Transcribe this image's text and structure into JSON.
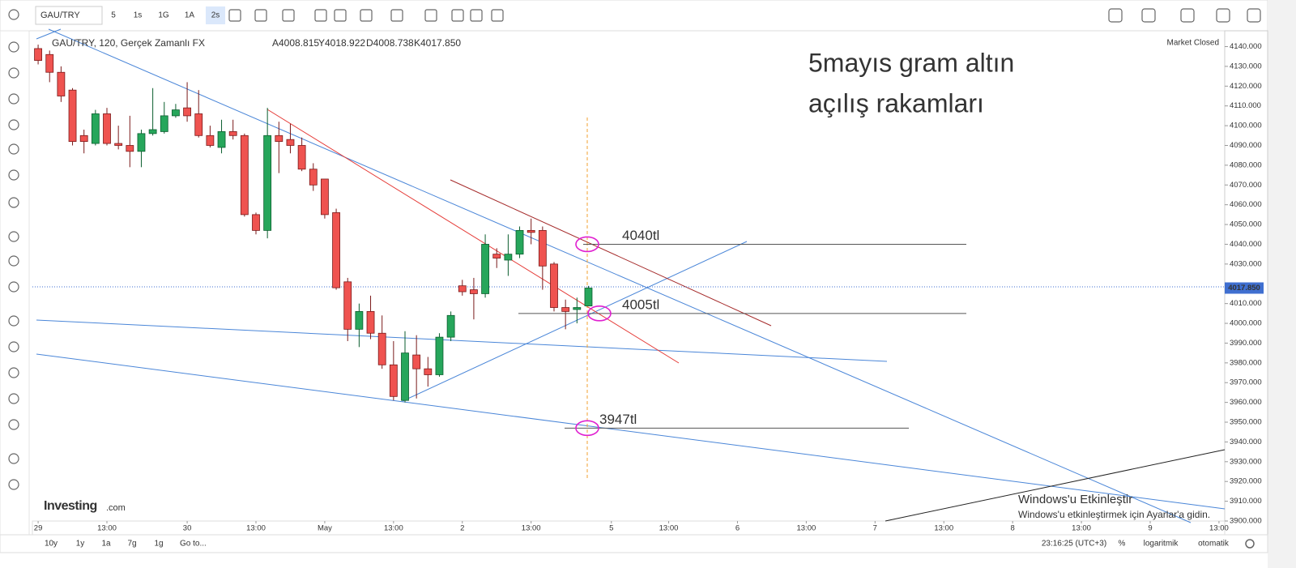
{
  "toolbar": {
    "symbol": "GAU/TRY",
    "intervals": [
      "5",
      "1s",
      "1G",
      "1A",
      "2s"
    ]
  },
  "header": {
    "title": "GAU/TRY, 120, Gerçek Zamanlı FX",
    "ohlc": [
      "A4008.815",
      "Y4018.922",
      "D4008.738",
      "K4017.850"
    ],
    "status": "Market Closed",
    "price": "4017.850"
  },
  "chart_data": {
    "type": "candlestick",
    "x": [
      0,
      1,
      2,
      3,
      4,
      5,
      6,
      7,
      8,
      9,
      10,
      11,
      12,
      13,
      14,
      15,
      16,
      17,
      18,
      19,
      20,
      21,
      22,
      23,
      24,
      25,
      26,
      27,
      28,
      29,
      30,
      31,
      32,
      33,
      34,
      35,
      36,
      37,
      38,
      39,
      40,
      41,
      42,
      43,
      44,
      45,
      46,
      47,
      48
    ],
    "open": [
      4139,
      4136,
      4127,
      4118,
      4095,
      4091,
      4106,
      4091,
      4090,
      4087,
      4096,
      4097,
      4105,
      4109,
      4106,
      4095,
      4089,
      4097,
      4095,
      4055,
      4047,
      4095,
      4093,
      4090,
      4078,
      4073,
      4056,
      4021,
      3997,
      4006,
      3995,
      3979,
      3961,
      3984,
      3977,
      3974,
      3993,
      4019,
      4017,
      4015,
      4035,
      4032,
      4035,
      4047,
      4047,
      4030,
      4008,
      4007,
      4008.815
    ],
    "high": [
      4141,
      4138,
      4130,
      4119,
      4098,
      4108,
      4109,
      4100,
      4105,
      4098,
      4119,
      4112,
      4111,
      4122,
      4118,
      4100,
      4103,
      4103,
      4096,
      4056,
      4109,
      4102,
      4101,
      4094,
      4081,
      4073,
      4058,
      4023,
      4010,
      4014,
      4004,
      3991,
      3996,
      3994,
      3983,
      3995,
      4006,
      4022,
      4023,
      4045,
      4038,
      4045,
      4049,
      4053,
      4049,
      4031,
      4012,
      4013,
      4018.922
    ],
    "low": [
      4131,
      4122,
      4112,
      4090,
      4086,
      4090,
      4090,
      4088,
      4079,
      4079,
      4095,
      4096,
      4104,
      4102,
      4094,
      4089,
      4086,
      4093,
      4054,
      4045,
      4043,
      4076,
      4086,
      4077,
      4067,
      4053,
      4017,
      3991,
      3988,
      3992,
      3977,
      3961,
      3960,
      3962,
      3968,
      3973,
      3991,
      4014,
      4002,
      4013,
      4028,
      4024,
      4033,
      4040,
      4017,
      4006,
      3997,
      4000,
      4008.738
    ],
    "close": [
      4133,
      4127,
      4115,
      4092,
      4092,
      4106,
      4091,
      4090,
      4087,
      4096,
      4098,
      4105,
      4108,
      4105,
      4095,
      4090,
      4097,
      4095,
      4055,
      4047,
      4095,
      4092,
      4090,
      4078,
      4070,
      4055,
      4018,
      3997,
      4006,
      3995,
      3979,
      3963,
      3985,
      3977,
      3974,
      3993,
      4004,
      4016,
      4015,
      4040,
      4033,
      4035,
      4047,
      4046,
      4029,
      4008,
      4006,
      4008,
      4017.85
    ],
    "up_color": "#26a65b",
    "down_color": "#ef5350",
    "grid": false,
    "ylim": [
      3900,
      4148
    ],
    "yticks": [
      {
        "value": 3900,
        "label": "3900.000"
      },
      {
        "value": 3910,
        "label": "3910.000"
      },
      {
        "value": 3920,
        "label": "3920.000"
      },
      {
        "value": 3930,
        "label": "3930.000"
      },
      {
        "value": 3940,
        "label": "3940.000"
      },
      {
        "value": 3950,
        "label": "3950.000"
      },
      {
        "value": 3960,
        "label": "3960.000"
      },
      {
        "value": 3970,
        "label": "3970.000"
      },
      {
        "value": 3980,
        "label": "3980.000"
      },
      {
        "value": 3990,
        "label": "3990.000"
      },
      {
        "value": 4000,
        "label": "4000.000"
      },
      {
        "value": 4010,
        "label": "4010.000"
      },
      {
        "value": 4030,
        "label": "4030.000"
      },
      {
        "value": 4040,
        "label": "4040.000"
      },
      {
        "value": 4050,
        "label": "4050.000"
      },
      {
        "value": 4060,
        "label": "4060.000"
      },
      {
        "value": 4070,
        "label": "4070.000"
      },
      {
        "value": 4080,
        "label": "4080.000"
      },
      {
        "value": 4090,
        "label": "4090.000"
      },
      {
        "value": 4100,
        "label": "4100.000"
      },
      {
        "value": 4110,
        "label": "4110.000"
      },
      {
        "value": 4120,
        "label": "4120.000"
      },
      {
        "value": 4130,
        "label": "4130.000"
      },
      {
        "value": 4140,
        "label": "4140.000"
      }
    ],
    "xlim": [
      -0.5,
      103.5
    ],
    "xticks": [
      {
        "value": 0,
        "label": "29"
      },
      {
        "value": 6,
        "label": "13:00"
      },
      {
        "value": 13,
        "label": "30"
      },
      {
        "value": 19,
        "label": "13:00"
      },
      {
        "value": 25,
        "label": "May"
      },
      {
        "value": 31,
        "label": "13:00"
      },
      {
        "value": 37,
        "label": "2"
      },
      {
        "value": 43,
        "label": "13:00"
      },
      {
        "value": 50,
        "label": "5"
      },
      {
        "value": 55,
        "label": "13:00"
      },
      {
        "value": 61,
        "label": "6"
      },
      {
        "value": 67,
        "label": "13:00"
      },
      {
        "value": 73,
        "label": "7"
      },
      {
        "value": 79,
        "label": "13:00"
      },
      {
        "value": 85,
        "label": "8"
      },
      {
        "value": 91,
        "label": "13:00"
      },
      {
        "value": 97,
        "label": "9"
      },
      {
        "value": 103,
        "label": "13:00"
      }
    ],
    "annotations": [
      "5mayıs gram altın",
      "açılış rakamları"
    ],
    "levels": [
      {
        "label": "4040tl",
        "value": 4040
      },
      {
        "label": "4005tl",
        "value": 4005
      },
      {
        "label": "3947tl",
        "value": 3947
      }
    ]
  },
  "bottom_bar": {
    "ranges": [
      "10y",
      "1y",
      "1a",
      "7g",
      "1g"
    ],
    "goto": "Go to...",
    "clock": "23:16:25 (UTC+3)",
    "options": [
      "%",
      "logaritmik",
      "otomatik"
    ]
  },
  "watermark": {
    "brand": "Investing",
    "suffix": ".com"
  },
  "windows": {
    "title": "Windows'u Etkinleştir",
    "text": "Windows'u etkinleştirmek için Ayarlar'a gidin."
  }
}
